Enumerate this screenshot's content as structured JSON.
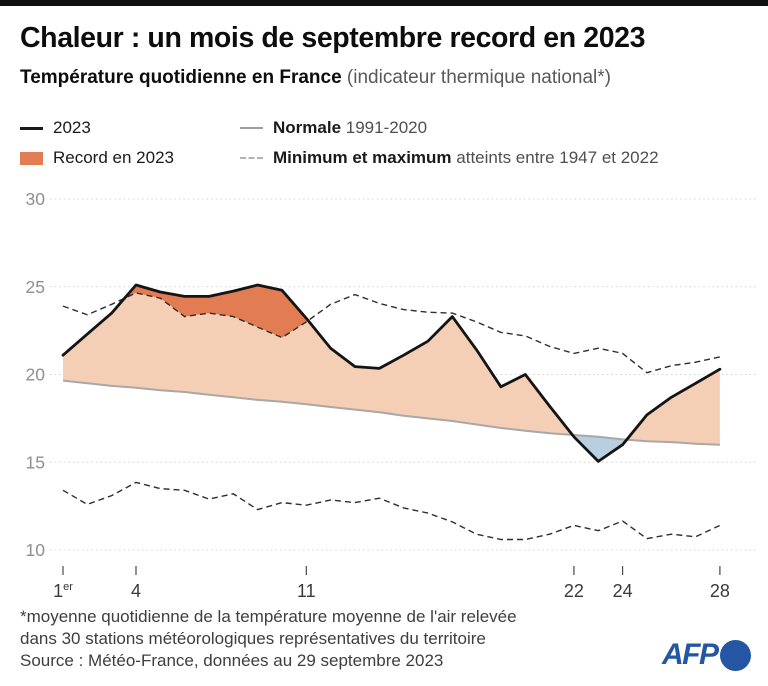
{
  "colors": {
    "afp_blue": "#2456a4",
    "top_bar": "#101010"
  },
  "chart_data": {
    "type": "line",
    "title": "Chaleur : un mois de septembre record en 2023",
    "subtitle_bold": "Température quotidienne en France",
    "subtitle_light": " (indicateur thermique national*)",
    "ylim": [
      10,
      30
    ],
    "yticks": [
      30,
      25,
      20,
      15,
      10
    ],
    "xticks": [
      {
        "x": 1,
        "label": "1",
        "sup": "er"
      },
      {
        "x": 4,
        "label": "4"
      },
      {
        "x": 11,
        "label": "11"
      },
      {
        "x": 22,
        "label": "22"
      },
      {
        "x": 24,
        "label": "24"
      },
      {
        "x": 28,
        "label": "28"
      }
    ],
    "x": [
      1,
      2,
      3,
      4,
      5,
      6,
      7,
      8,
      9,
      10,
      11,
      12,
      13,
      14,
      15,
      16,
      17,
      18,
      19,
      20,
      21,
      22,
      23,
      24,
      25,
      26,
      27,
      28
    ],
    "series": [
      {
        "name": "2023",
        "style": "solid",
        "color": "#141414",
        "values": [
          21.1,
          22.3,
          23.5,
          25.1,
          24.7,
          24.45,
          24.45,
          24.75,
          25.1,
          24.8,
          23.2,
          21.5,
          20.45,
          20.35,
          21.1,
          21.9,
          23.3,
          21.4,
          19.3,
          20.0,
          18.2,
          16.45,
          15.05,
          16.0,
          17.7,
          18.7,
          19.5,
          20.3
        ]
      },
      {
        "name": "Normale 1991-2020",
        "style": "solid",
        "color": "#a8a8a8",
        "values": [
          19.65,
          19.5,
          19.35,
          19.25,
          19.1,
          19.0,
          18.85,
          18.7,
          18.55,
          18.45,
          18.3,
          18.15,
          18.0,
          17.85,
          17.65,
          17.5,
          17.35,
          17.15,
          16.95,
          16.8,
          16.65,
          16.55,
          16.45,
          16.3,
          16.2,
          16.15,
          16.05,
          16.0
        ]
      },
      {
        "name": "Maximum atteint entre 1947 et 2022",
        "style": "dashed",
        "color": "#2e2e2e",
        "values": [
          23.9,
          23.4,
          24.0,
          24.65,
          24.35,
          23.3,
          23.5,
          23.3,
          22.7,
          22.1,
          23.0,
          24.0,
          24.55,
          24.05,
          23.7,
          23.55,
          23.5,
          23.0,
          22.4,
          22.2,
          21.6,
          21.2,
          21.5,
          21.2,
          20.1,
          20.5,
          20.7,
          21.0
        ]
      },
      {
        "name": "Minimum atteint entre 1947 et 2022",
        "style": "dashed",
        "color": "#2e2e2e",
        "values": [
          13.4,
          12.6,
          13.1,
          13.85,
          13.5,
          13.4,
          12.9,
          13.2,
          12.3,
          12.7,
          12.55,
          12.85,
          12.7,
          12.95,
          12.4,
          12.1,
          11.6,
          10.9,
          10.6,
          10.6,
          10.9,
          11.4,
          11.1,
          11.65,
          10.65,
          10.9,
          10.75,
          11.4
        ]
      }
    ],
    "fills": {
      "record": "#e17c53",
      "above_normale": "#f4cfb5",
      "below_normale": "#b9cede"
    },
    "legend": [
      {
        "label": "2023"
      },
      {
        "label": "Record en 2023"
      },
      {
        "label": "Normale",
        "label_light": " 1991-2020"
      },
      {
        "label": "Minimum et maximum",
        "label_light": " atteints entre 1947 et 2022"
      }
    ],
    "grid": "dotted horizontal lines at each ytick"
  },
  "footer": {
    "footnote_line1": "*moyenne quotidienne de la température moyenne de l'air relevée",
    "footnote_line2": "dans 30 stations météorologiques représentatives du territoire",
    "source": "Source : Météo-France, données au 29 septembre 2023",
    "afp": "AFP"
  }
}
